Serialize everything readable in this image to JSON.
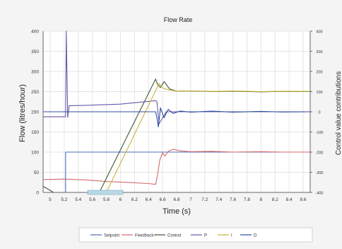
{
  "chart_data": {
    "type": "line",
    "title": "Flow Rate",
    "xlabel": "Time (s)",
    "ylabel": "Flow (litres/hour)",
    "y2label": "Control value contributions",
    "xlim": [
      4.9,
      8.7
    ],
    "ylim": [
      0,
      400
    ],
    "y2lim": [
      -400,
      400
    ],
    "x_ticks": [
      "5",
      "5.2",
      "5.4",
      "5.6",
      "5.8",
      "6",
      "6.2",
      "6.4",
      "6.6",
      "6.8",
      "7",
      "7.2",
      "7.4",
      "7.6",
      "7.8",
      "8",
      "8.2",
      "8.4",
      "8.6"
    ],
    "y_ticks": [
      "0",
      "50",
      "100",
      "150",
      "200",
      "250",
      "300",
      "350",
      "400"
    ],
    "y2_ticks": [
      "-400",
      "-300",
      "-200",
      "-100",
      "0",
      "100",
      "200",
      "300",
      "400"
    ],
    "grid": true,
    "legend_position": "bottom",
    "series": [
      {
        "name": "Setpoint",
        "axis": "left",
        "color": "#4f6fb8",
        "points": [
          [
            4.9,
            0
          ],
          [
            5.22,
            0
          ],
          [
            5.22,
            100
          ],
          [
            8.7,
            100
          ]
        ]
      },
      {
        "name": "Feedback",
        "axis": "left",
        "color": "#d46a6a",
        "points": [
          [
            4.9,
            32
          ],
          [
            5.2,
            33
          ],
          [
            5.5,
            31
          ],
          [
            5.8,
            27
          ],
          [
            6.1,
            25
          ],
          [
            6.4,
            22
          ],
          [
            6.5,
            20
          ],
          [
            6.53,
            45
          ],
          [
            6.56,
            80
          ],
          [
            6.6,
            98
          ],
          [
            6.63,
            90
          ],
          [
            6.68,
            102
          ],
          [
            6.75,
            107
          ],
          [
            6.85,
            103
          ],
          [
            7.0,
            101
          ],
          [
            7.3,
            102
          ],
          [
            7.6,
            100
          ],
          [
            8.0,
            101
          ],
          [
            8.3,
            100
          ],
          [
            8.7,
            100
          ]
        ]
      },
      {
        "name": "Control",
        "axis": "right",
        "color": "#3d5a2e",
        "points": [
          [
            4.9,
            -370
          ],
          [
            5.05,
            -400
          ],
          [
            5.7,
            -400
          ],
          [
            6.5,
            162
          ],
          [
            6.53,
            135
          ],
          [
            6.57,
            120
          ],
          [
            6.62,
            150
          ],
          [
            6.7,
            113
          ],
          [
            6.8,
            102
          ],
          [
            7.0,
            103
          ],
          [
            7.3,
            100
          ],
          [
            7.6,
            102
          ],
          [
            8.0,
            99
          ],
          [
            8.3,
            101
          ],
          [
            8.7,
            100
          ]
        ]
      },
      {
        "name": "P",
        "axis": "right",
        "color": "#6a58a8",
        "points": [
          [
            4.9,
            -25
          ],
          [
            5.22,
            -25
          ],
          [
            5.23,
            400
          ],
          [
            5.25,
            -28
          ],
          [
            5.27,
            30
          ],
          [
            5.5,
            32
          ],
          [
            6.0,
            38
          ],
          [
            6.5,
            55
          ],
          [
            6.52,
            50
          ],
          [
            6.55,
            -60
          ],
          [
            6.6,
            -30
          ],
          [
            6.65,
            0
          ],
          [
            8.7,
            0
          ]
        ]
      },
      {
        "name": "I",
        "axis": "right",
        "color": "#c9b43c",
        "points": [
          [
            4.9,
            -400
          ],
          [
            5.8,
            -400
          ],
          [
            6.55,
            140
          ],
          [
            6.58,
            125
          ],
          [
            6.62,
            115
          ],
          [
            6.7,
            108
          ],
          [
            6.8,
            102
          ],
          [
            7.0,
            104
          ],
          [
            7.3,
            101
          ],
          [
            7.6,
            103
          ],
          [
            8.0,
            100
          ],
          [
            8.3,
            102
          ],
          [
            8.7,
            101
          ]
        ]
      },
      {
        "name": "D",
        "axis": "right",
        "color": "#2c4fa0",
        "points": [
          [
            4.9,
            0
          ],
          [
            6.5,
            0
          ],
          [
            6.52,
            -30
          ],
          [
            6.54,
            -75
          ],
          [
            6.57,
            20
          ],
          [
            6.62,
            -30
          ],
          [
            6.68,
            12
          ],
          [
            6.75,
            -8
          ],
          [
            6.85,
            4
          ],
          [
            7.0,
            -2
          ],
          [
            7.3,
            3
          ],
          [
            7.6,
            -2
          ],
          [
            8.0,
            2
          ],
          [
            8.3,
            -1
          ],
          [
            8.7,
            0
          ]
        ]
      }
    ]
  }
}
